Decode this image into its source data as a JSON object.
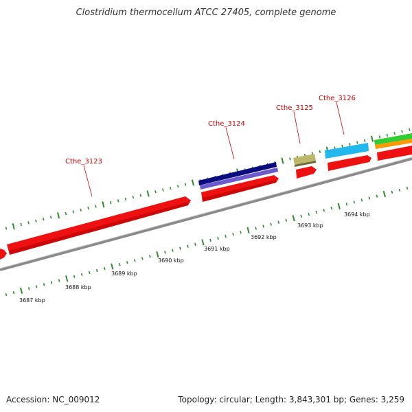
{
  "title": "Clostridium thermocellum ATCC 27405, complete genome",
  "footer": {
    "accession": "Accession: NC_009012",
    "info": "Topology: circular; Length: 3,843,301 bp; Genes: 3,259"
  },
  "colors": {
    "background": "#ffffff",
    "backbone": "#8a8a8a",
    "tick": "#2e8b2e",
    "gene_label": "#cc0000",
    "forward_gene": "#ee1111",
    "reverse_gene": "#ee1111",
    "cds_dark_blue": "#0b0b80",
    "cds_purple": "#6a5acd",
    "cds_khaki": "#bdb76b",
    "cds_cyan": "#22b8ee",
    "cds_green": "#33cc33",
    "cds_orange": "#ff9900"
  },
  "gene_labels": [
    {
      "id": "Cthe_3123",
      "text": "Cthe_3123"
    },
    {
      "id": "Cthe_3124",
      "text": "Cthe_3124"
    },
    {
      "id": "Cthe_3125",
      "text": "Cthe_3125"
    },
    {
      "id": "Cthe_3126",
      "text": "Cthe_3126"
    }
  ],
  "kbp_ticks": [
    {
      "text": "3687 kbp"
    },
    {
      "text": "3688 kbp"
    },
    {
      "text": "3689 kbp"
    },
    {
      "text": "3690 kbp"
    },
    {
      "text": "3691 kbp"
    },
    {
      "text": "3692 kbp"
    },
    {
      "text": "3693 kbp"
    },
    {
      "text": "3694 kbp"
    }
  ]
}
